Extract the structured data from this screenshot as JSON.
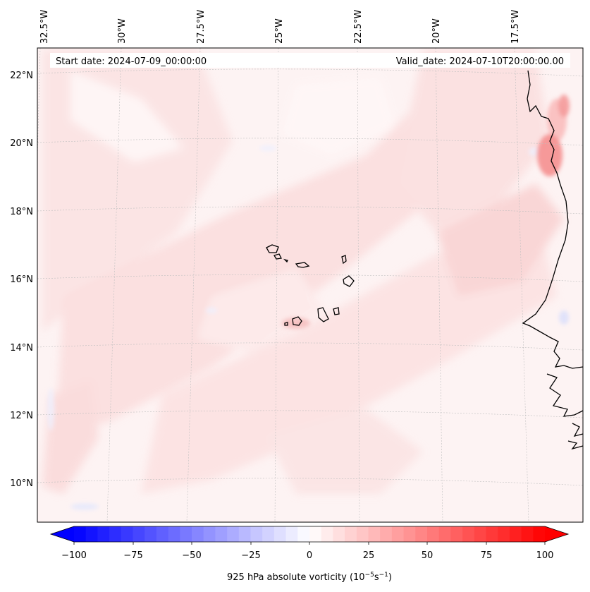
{
  "header": {
    "start_date": "Start date: 2024-07-09_00:00:00",
    "valid_date": "Valid_date: 2024-07-10T20:00:00.00"
  },
  "map": {
    "longitude_labels": [
      "32.5°W",
      "30°W",
      "27.5°W",
      "25°W",
      "22.5°W",
      "20°W",
      "17.5°W"
    ],
    "latitude_labels": [
      "22°N",
      "20°N",
      "18°N",
      "16°N",
      "14°N",
      "12°N",
      "10°N"
    ]
  },
  "colorbar": {
    "ticks": [
      "−100",
      "−75",
      "−50",
      "−25",
      "0",
      "25",
      "50",
      "75",
      "100"
    ],
    "label_prefix": "925 hPa absolute vorticity (10",
    "label_exp1": "−5",
    "label_mid": "s",
    "label_exp2": "−1",
    "label_suffix": ")",
    "min_color": "#0000ff",
    "mid_color": "#ffffff",
    "max_color": "#ff0000"
  }
}
